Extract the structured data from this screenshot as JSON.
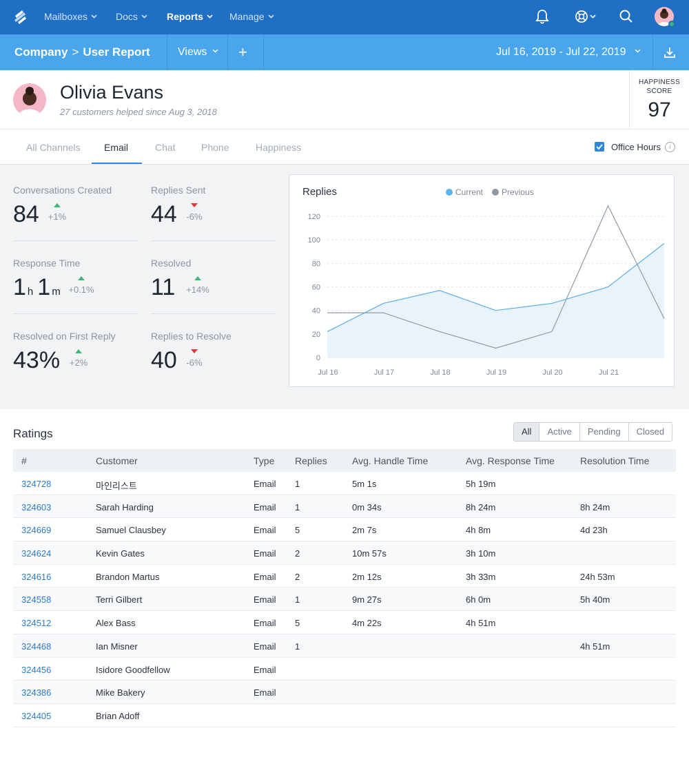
{
  "nav": {
    "items": [
      {
        "label": "Mailboxes"
      },
      {
        "label": "Docs"
      },
      {
        "label": "Reports"
      },
      {
        "label": "Manage"
      }
    ]
  },
  "subbar": {
    "crumb_parent": "Company",
    "crumb_sep": ">",
    "crumb_current": "User Report",
    "views_label": "Views",
    "add_label": "+",
    "date_range": "Jul 16, 2019 - Jul 22, 2019"
  },
  "profile": {
    "name": "Olivia Evans",
    "subtitle": "27 customers helped since Aug 3, 2018",
    "happiness_label_1": "HAPPINESS",
    "happiness_label_2": "SCORE",
    "happiness_value": "97"
  },
  "tabs": [
    {
      "label": "All Channels"
    },
    {
      "label": "Email"
    },
    {
      "label": "Chat"
    },
    {
      "label": "Phone"
    },
    {
      "label": "Happiness"
    }
  ],
  "office_hours": {
    "label": "Office Hours",
    "checked": true,
    "info": "i"
  },
  "stats": {
    "conversations_created": {
      "label": "Conversations Created",
      "value": "84",
      "delta": "+1%"
    },
    "replies_sent": {
      "label": "Replies Sent",
      "value": "44",
      "delta": "-6%"
    },
    "response_time": {
      "label": "Response Time",
      "hours": "1",
      "h_unit": "h",
      "minutes": "1",
      "m_unit": "m",
      "delta": "+0.1%"
    },
    "resolved": {
      "label": "Resolved",
      "value": "11",
      "delta": "+14%"
    },
    "resolved_first_reply": {
      "label": "Resolved on First Reply",
      "value": "43%",
      "delta": "+2%"
    },
    "replies_to_resolve": {
      "label": "Replies to Resolve",
      "value": "40",
      "delta": "-6%"
    }
  },
  "chart_data": {
    "type": "area",
    "title": "Replies",
    "x": [
      "Jul 16",
      "Jul 17",
      "Jul 18",
      "Jul 19",
      "Jul 20",
      "Jul 21",
      ""
    ],
    "series": [
      {
        "name": "Current",
        "color": "#5aaee8",
        "values": [
          22,
          46,
          57,
          40,
          46,
          60,
          97
        ]
      },
      {
        "name": "Previous",
        "color": "#8f9aa5",
        "values": [
          38,
          38,
          22,
          8,
          22,
          129,
          33
        ]
      }
    ],
    "yticks": [
      0,
      20,
      40,
      60,
      80,
      100,
      120
    ],
    "ylim": [
      0,
      130
    ],
    "grid": true,
    "legend": "top-center"
  },
  "ratings": {
    "title": "Ratings",
    "filters": [
      "All",
      "Active",
      "Pending",
      "Closed"
    ],
    "columns": [
      "#",
      "Customer",
      "Type",
      "Replies",
      "Avg. Handle Time",
      "Avg. Response Time",
      "Resolution Time"
    ],
    "rows": [
      {
        "id": "324728",
        "customer": "마인리스트",
        "type": "Email",
        "replies": "1",
        "handle": "5m 1s",
        "response": "5h 19m",
        "resolution": ""
      },
      {
        "id": "324603",
        "customer": "Sarah Harding",
        "type": "Email",
        "replies": "1",
        "handle": "0m 34s",
        "response": "8h 24m",
        "resolution": "8h 24m"
      },
      {
        "id": "324669",
        "customer": "Samuel Clausbey",
        "type": "Email",
        "replies": "5",
        "handle": "2m 7s",
        "response": "4h 8m",
        "resolution": "4d 23h"
      },
      {
        "id": "324624",
        "customer": "Kevin Gates",
        "type": "Email",
        "replies": "2",
        "handle": "10m 57s",
        "response": "3h 10m",
        "resolution": ""
      },
      {
        "id": "324616",
        "customer": "Brandon Martus",
        "type": "Email",
        "replies": "2",
        "handle": "2m 12s",
        "response": "3h 33m",
        "resolution": "24h 53m"
      },
      {
        "id": "324558",
        "customer": "Terri Gilbert",
        "type": "Email",
        "replies": "1",
        "handle": "9m 27s",
        "response": "6h 0m",
        "resolution": "5h 40m"
      },
      {
        "id": "324512",
        "customer": "Alex Bass",
        "type": "Email",
        "replies": "5",
        "handle": "4m 22s",
        "response": "4h 51m",
        "resolution": ""
      },
      {
        "id": "324468",
        "customer": "Ian Misner",
        "type": "Email",
        "replies": "1",
        "handle": "",
        "response": "",
        "resolution": "4h 51m"
      },
      {
        "id": "324456",
        "customer": "Isidore Goodfellow",
        "type": "Email",
        "replies": "",
        "handle": "",
        "response": "",
        "resolution": ""
      },
      {
        "id": "324386",
        "customer": "Mike Bakery",
        "type": "Email",
        "replies": "",
        "handle": "",
        "response": "",
        "resolution": ""
      },
      {
        "id": "324405",
        "customer": "Brian Adoff",
        "type": "",
        "replies": "",
        "handle": "",
        "response": "",
        "resolution": ""
      }
    ]
  }
}
